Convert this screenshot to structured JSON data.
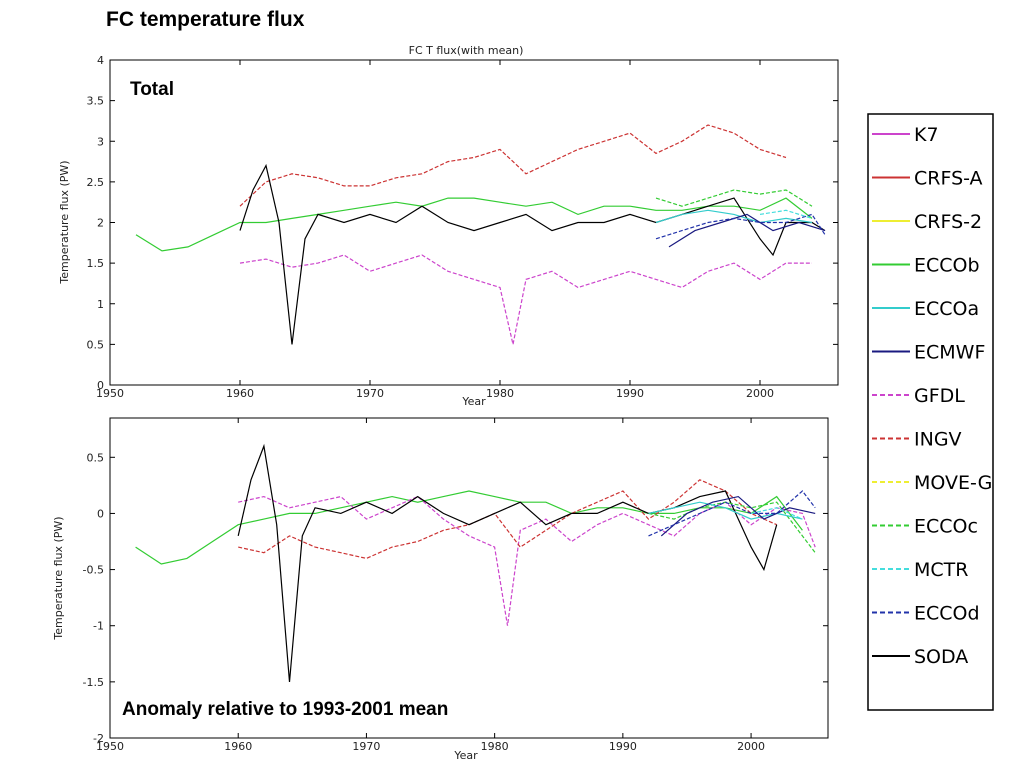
{
  "slide_title": "FC temperature flux",
  "chart_data": [
    {
      "type": "line",
      "title": "FC T flux(with mean)",
      "panel_label": "Total",
      "xlabel": "Year",
      "ylabel": "Temperature flux (PW)",
      "xlim": [
        1950,
        2006
      ],
      "ylim": [
        0,
        4
      ],
      "xticks": [
        1950,
        1960,
        1970,
        1980,
        1990,
        2000
      ],
      "xticklabels": [
        "1950",
        "1960",
        "1970",
        "1980",
        "1990",
        "2000"
      ],
      "yticks": [
        0,
        0.5,
        1,
        1.5,
        2,
        2.5,
        3,
        3.5,
        4
      ],
      "yticklabels": [
        "0",
        "0.5",
        "1",
        "1.5",
        "2",
        "2.5",
        "3",
        "3.5",
        "4"
      ],
      "grid": false,
      "series": [
        {
          "name": "ECCOb",
          "color": "#33cc33",
          "dash": "solid",
          "x": [
            1952,
            1954,
            1956,
            1958,
            1960,
            1962,
            1964,
            1966,
            1968,
            1970,
            1972,
            1974,
            1976,
            1978,
            1980,
            1982,
            1984,
            1986,
            1988,
            1990,
            1992,
            1994,
            1996,
            1998,
            2000,
            2002,
            2004
          ],
          "y": [
            1.85,
            1.65,
            1.7,
            1.85,
            2.0,
            2.0,
            2.05,
            2.1,
            2.15,
            2.2,
            2.25,
            2.2,
            2.3,
            2.3,
            2.25,
            2.2,
            2.25,
            2.1,
            2.2,
            2.2,
            2.15,
            2.15,
            2.2,
            2.2,
            2.15,
            2.3,
            2.05
          ]
        },
        {
          "name": "GFDL",
          "color": "#cc44cc",
          "dash": "dashed",
          "x": [
            1960,
            1962,
            1964,
            1966,
            1968,
            1970,
            1972,
            1974,
            1976,
            1978,
            1980,
            1981,
            1982,
            1984,
            1986,
            1988,
            1990,
            1992,
            1994,
            1996,
            1998,
            2000,
            2002,
            2004
          ],
          "y": [
            1.5,
            1.55,
            1.45,
            1.5,
            1.6,
            1.4,
            1.5,
            1.6,
            1.4,
            1.3,
            1.2,
            0.5,
            1.3,
            1.4,
            1.2,
            1.3,
            1.4,
            1.3,
            1.2,
            1.4,
            1.5,
            1.3,
            1.5,
            1.5
          ]
        },
        {
          "name": "INGV",
          "color": "#cc3333",
          "dash": "dashed",
          "x": [
            1960,
            1962,
            1964,
            1966,
            1968,
            1970,
            1972,
            1974,
            1976,
            1978,
            1980,
            1982,
            1984,
            1986,
            1988,
            1990,
            1992,
            1994,
            1996,
            1998,
            2000,
            2002
          ],
          "y": [
            2.2,
            2.5,
            2.6,
            2.55,
            2.45,
            2.45,
            2.55,
            2.6,
            2.75,
            2.8,
            2.9,
            2.6,
            2.75,
            2.9,
            3.0,
            3.1,
            2.85,
            3.0,
            3.2,
            3.1,
            2.9,
            2.8
          ]
        },
        {
          "name": "SODA",
          "color": "#000000",
          "dash": "solid",
          "x": [
            1960,
            1961,
            1962,
            1963,
            1964,
            1965,
            1966,
            1968,
            1970,
            1972,
            1974,
            1976,
            1978,
            1980,
            1982,
            1984,
            1986,
            1988,
            1990,
            1992,
            1994,
            1996,
            1998,
            2000,
            2001,
            2002,
            2004,
            2005
          ],
          "y": [
            1.9,
            2.4,
            2.7,
            2.0,
            0.5,
            1.8,
            2.1,
            2.0,
            2.1,
            2.0,
            2.2,
            2.0,
            1.9,
            2.0,
            2.1,
            1.9,
            2.0,
            2.0,
            2.1,
            2.0,
            2.1,
            2.2,
            2.3,
            1.8,
            1.6,
            2.0,
            2.0,
            1.9
          ]
        },
        {
          "name": "ECCOc",
          "color": "#33cc33",
          "dash": "dashed",
          "x": [
            1992,
            1994,
            1996,
            1998,
            2000,
            2002,
            2004
          ],
          "y": [
            2.3,
            2.2,
            2.3,
            2.4,
            2.35,
            2.4,
            2.2
          ]
        },
        {
          "name": "ECCOa",
          "color": "#33cccc",
          "dash": "solid",
          "x": [
            1992,
            1994,
            1996,
            1998,
            2000,
            2002,
            2004
          ],
          "y": [
            2.0,
            2.1,
            2.15,
            2.1,
            2.0,
            2.05,
            2.0
          ]
        },
        {
          "name": "ECMWF",
          "color": "#1a1a80",
          "dash": "solid",
          "x": [
            1993,
            1995,
            1997,
            1999,
            2001,
            2003,
            2005
          ],
          "y": [
            1.7,
            1.9,
            2.0,
            2.1,
            1.9,
            2.0,
            1.9
          ]
        },
        {
          "name": "ECCOd",
          "color": "#2233aa",
          "dash": "dashed",
          "x": [
            1992,
            1994,
            1996,
            1998,
            2000,
            2002,
            2004,
            2005
          ],
          "y": [
            1.8,
            1.9,
            2.0,
            2.05,
            2.0,
            2.0,
            2.1,
            1.85
          ]
        },
        {
          "name": "MCTR",
          "color": "#44dddd",
          "dash": "dashed",
          "x": [
            2000,
            2002,
            2004
          ],
          "y": [
            2.1,
            2.15,
            2.05
          ]
        }
      ]
    },
    {
      "type": "line",
      "panel_label": "Anomaly relative to 1993-2001 mean",
      "xlabel": "Year",
      "ylabel": "Temperature flux (PW)",
      "xlim": [
        1950,
        2006
      ],
      "ylim": [
        -2,
        0.85
      ],
      "xticks": [
        1950,
        1960,
        1970,
        1980,
        1990,
        2000
      ],
      "xticklabels": [
        "1950",
        "1960",
        "1970",
        "1980",
        "1990",
        "2000"
      ],
      "yticks": [
        -2,
        -1.5,
        -1,
        -0.5,
        0,
        0.5
      ],
      "yticklabels": [
        "-2",
        "-1.5",
        "-1",
        "-0.5",
        "0",
        "0.5"
      ],
      "grid": false,
      "series": [
        {
          "name": "ECCOb",
          "color": "#33cc33",
          "dash": "solid",
          "x": [
            1952,
            1954,
            1956,
            1958,
            1960,
            1962,
            1964,
            1966,
            1968,
            1970,
            1972,
            1974,
            1976,
            1978,
            1980,
            1982,
            1984,
            1986,
            1988,
            1990,
            1992,
            1994,
            1996,
            1998,
            2000,
            2002,
            2004
          ],
          "y": [
            -0.3,
            -0.45,
            -0.4,
            -0.25,
            -0.1,
            -0.05,
            0.0,
            0.0,
            0.05,
            0.1,
            0.15,
            0.1,
            0.15,
            0.2,
            0.15,
            0.1,
            0.1,
            0.0,
            0.05,
            0.05,
            0.0,
            0.0,
            0.05,
            0.05,
            0.0,
            0.15,
            -0.15
          ]
        },
        {
          "name": "GFDL",
          "color": "#cc44cc",
          "dash": "dashed",
          "x": [
            1960,
            1962,
            1964,
            1966,
            1968,
            1970,
            1972,
            1974,
            1976,
            1978,
            1980,
            1981,
            1982,
            1984,
            1986,
            1988,
            1990,
            1992,
            1994,
            1996,
            1998,
            2000,
            2002,
            2004,
            2005
          ],
          "y": [
            0.1,
            0.15,
            0.05,
            0.1,
            0.15,
            -0.05,
            0.05,
            0.15,
            -0.05,
            -0.2,
            -0.3,
            -1.0,
            -0.15,
            -0.05,
            -0.25,
            -0.1,
            0.0,
            -0.1,
            -0.2,
            0.0,
            0.1,
            -0.1,
            0.05,
            0.0,
            -0.3
          ]
        },
        {
          "name": "INGV",
          "color": "#cc3333",
          "dash": "dashed",
          "x": [
            1960,
            1962,
            1964,
            1966,
            1968,
            1970,
            1972,
            1974,
            1976,
            1978,
            1980,
            1982,
            1984,
            1986,
            1988,
            1990,
            1992,
            1994,
            1996,
            1998,
            2000,
            2002
          ],
          "y": [
            -0.3,
            -0.35,
            -0.2,
            -0.3,
            -0.35,
            -0.4,
            -0.3,
            -0.25,
            -0.15,
            -0.1,
            0.0,
            -0.3,
            -0.15,
            0.0,
            0.1,
            0.2,
            -0.05,
            0.1,
            0.3,
            0.2,
            0.0,
            -0.1
          ]
        },
        {
          "name": "SODA",
          "color": "#000000",
          "dash": "solid",
          "x": [
            1960,
            1961,
            1962,
            1963,
            1964,
            1965,
            1966,
            1968,
            1970,
            1972,
            1974,
            1976,
            1978,
            1980,
            1982,
            1984,
            1986,
            1988,
            1990,
            1992,
            1994,
            1996,
            1998,
            2000,
            2001,
            2002
          ],
          "y": [
            -0.2,
            0.3,
            0.6,
            -0.1,
            -1.5,
            -0.2,
            0.05,
            0.0,
            0.1,
            0.0,
            0.15,
            0.0,
            -0.1,
            0.0,
            0.1,
            -0.1,
            0.0,
            0.0,
            0.1,
            0.0,
            0.05,
            0.15,
            0.2,
            -0.3,
            -0.5,
            -0.1
          ]
        },
        {
          "name": "ECCOc",
          "color": "#33cc33",
          "dash": "dashed",
          "x": [
            1992,
            1994,
            1996,
            1998,
            2000,
            2002,
            2004,
            2005
          ],
          "y": [
            0.0,
            -0.05,
            0.05,
            0.1,
            0.05,
            0.1,
            -0.2,
            -0.35
          ]
        },
        {
          "name": "ECCOa",
          "color": "#33cccc",
          "dash": "solid",
          "x": [
            1992,
            1994,
            1996,
            1998,
            2000,
            2002,
            2004
          ],
          "y": [
            0.0,
            0.05,
            0.1,
            0.05,
            -0.05,
            0.0,
            -0.05
          ]
        },
        {
          "name": "ECMWF",
          "color": "#1a1a80",
          "dash": "solid",
          "x": [
            1993,
            1995,
            1997,
            1999,
            2001,
            2003,
            2005
          ],
          "y": [
            -0.2,
            0.0,
            0.1,
            0.15,
            -0.05,
            0.05,
            0.0
          ]
        },
        {
          "name": "ECCOd",
          "color": "#2233aa",
          "dash": "dashed",
          "x": [
            1992,
            1994,
            1996,
            1998,
            2000,
            2002,
            2004,
            2005
          ],
          "y": [
            -0.2,
            -0.1,
            0.0,
            0.1,
            0.0,
            0.0,
            0.2,
            0.05
          ]
        },
        {
          "name": "MCTR",
          "color": "#44dddd",
          "dash": "dashed",
          "x": [
            2000,
            2002,
            2004
          ],
          "y": [
            0.0,
            0.05,
            -0.05
          ]
        }
      ]
    }
  ],
  "legend": {
    "placement": "right",
    "entries": [
      {
        "name": "K7",
        "color": "#cc44cc",
        "dash": "solid"
      },
      {
        "name": "CRFS-A",
        "color": "#cc3333",
        "dash": "solid"
      },
      {
        "name": "CRFS-2",
        "color": "#eeee33",
        "dash": "solid"
      },
      {
        "name": "ECCOb",
        "color": "#33cc33",
        "dash": "solid"
      },
      {
        "name": "ECCOa",
        "color": "#33cccc",
        "dash": "solid"
      },
      {
        "name": "ECMWF",
        "color": "#1a1a80",
        "dash": "solid"
      },
      {
        "name": "GFDL",
        "color": "#cc44cc",
        "dash": "dashed"
      },
      {
        "name": "INGV",
        "color": "#cc3333",
        "dash": "dashed"
      },
      {
        "name": "MOVE-G",
        "color": "#eeee33",
        "dash": "dashed"
      },
      {
        "name": "ECCOc",
        "color": "#33cc33",
        "dash": "dashed"
      },
      {
        "name": "MCTR",
        "color": "#44dddd",
        "dash": "dashed"
      },
      {
        "name": "ECCOd",
        "color": "#2233aa",
        "dash": "dashed"
      },
      {
        "name": "SODA",
        "color": "#000000",
        "dash": "solid"
      }
    ]
  }
}
